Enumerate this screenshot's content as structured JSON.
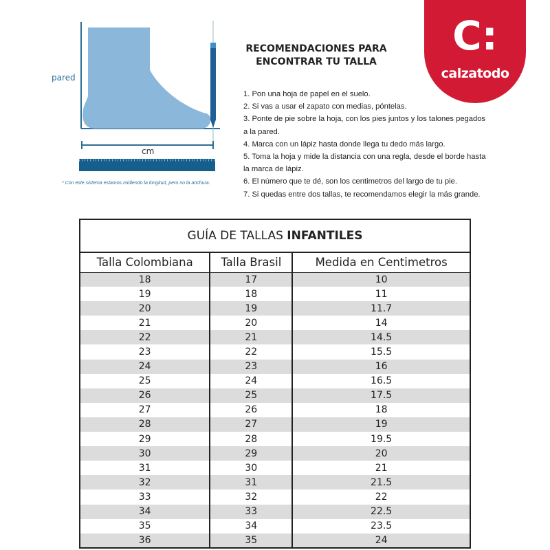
{
  "logo": {
    "mark": "C:",
    "name": "calzatodo",
    "color": "#d31a35"
  },
  "diagram": {
    "wall_label": "pared",
    "measure_label": "cm",
    "note": "* Con este sistema estamos midiendo la longitud, pero no la anchura.",
    "foot_color": "#8bb8da",
    "line_color": "#2c6e95"
  },
  "instructions": {
    "title_line1": "RECOMENDACIONES PARA",
    "title_line2": "ENCONTRAR TU TALLA",
    "steps": [
      "1. Pon una hoja de papel en el suelo.",
      "2. Si vas a usar el zapato con medias, póntelas.",
      "3. Ponte de pie sobre la hoja, con los pies juntos y los talones pegados",
      "a la pared.",
      "4. Marca con un lápiz hasta donde llega tu dedo más largo.",
      "5. Toma la hoja y mide la distancia con una regla, desde el borde hasta",
      "la marca de lápiz.",
      "6. El número que te dé, son los centimetros del largo de tu pie.",
      "7. Si quedas entre dos tallas, te recomendamos elegir la más grande."
    ]
  },
  "table": {
    "title_prefix": "GUÍA DE TALLAS ",
    "title_bold": "INFANTILES",
    "headers": [
      "Talla Colombiana",
      "Talla Brasil",
      "Medida en Centimetros"
    ],
    "rows": [
      [
        "18",
        "17",
        "10"
      ],
      [
        "19",
        "18",
        "11"
      ],
      [
        "20",
        "19",
        "11.7"
      ],
      [
        "21",
        "20",
        "14"
      ],
      [
        "22",
        "21",
        "14.5"
      ],
      [
        "23",
        "22",
        "15.5"
      ],
      [
        "24",
        "23",
        "16"
      ],
      [
        "25",
        "24",
        "16.5"
      ],
      [
        "26",
        "25",
        "17.5"
      ],
      [
        "27",
        "26",
        "18"
      ],
      [
        "28",
        "27",
        "19"
      ],
      [
        "29",
        "28",
        "19.5"
      ],
      [
        "30",
        "29",
        "20"
      ],
      [
        "31",
        "30",
        "21"
      ],
      [
        "32",
        "31",
        "21.5"
      ],
      [
        "33",
        "32",
        "22"
      ],
      [
        "34",
        "33",
        "22.5"
      ],
      [
        "35",
        "34",
        "23.5"
      ],
      [
        "36",
        "35",
        "24"
      ]
    ]
  }
}
